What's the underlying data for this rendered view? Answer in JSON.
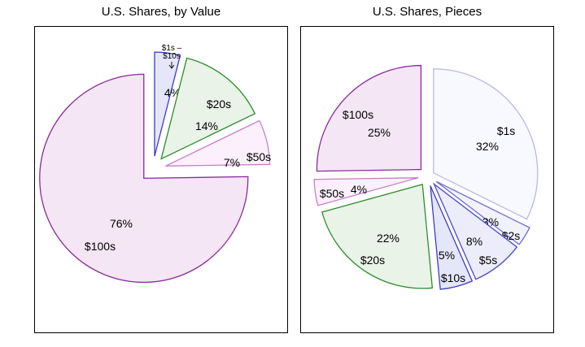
{
  "chart_data": [
    {
      "type": "pie",
      "title": "U.S. Shares, by Value",
      "slices": [
        {
          "label": "$1s – $10s",
          "value": 4,
          "value_label": "4%",
          "fill": "#e6e6fa",
          "stroke": "#3b3bcc"
        },
        {
          "label": "$20s",
          "value": 14,
          "value_label": "14%",
          "fill": "#e9f3e7",
          "stroke": "#2e8b2e"
        },
        {
          "label": "$50s",
          "value": 7,
          "value_label": "7%",
          "fill": "#fbf0fb",
          "stroke": "#c77fc7"
        },
        {
          "label": "$100s",
          "value": 76,
          "value_label": "76%",
          "fill": "#f4e6f4",
          "stroke": "#8b2a9b"
        }
      ]
    },
    {
      "type": "pie",
      "title": "U.S. Shares, Pieces",
      "slices": [
        {
          "label": "$1s",
          "value": 32,
          "value_label": "32%",
          "fill": "#f8f8ff",
          "stroke": "#b7b7e8"
        },
        {
          "label": "$2s",
          "value": 3,
          "value_label": "3%",
          "fill": "#f2f2fd",
          "stroke": "#6b6bd6"
        },
        {
          "label": "$5s",
          "value": 8,
          "value_label": "8%",
          "fill": "#ececfb",
          "stroke": "#4a4ad0"
        },
        {
          "label": "$10s",
          "value": 5,
          "value_label": "5%",
          "fill": "#e6e6fa",
          "stroke": "#3b3bcc"
        },
        {
          "label": "$20s",
          "value": 22,
          "value_label": "22%",
          "fill": "#e9f3e7",
          "stroke": "#2e8b2e"
        },
        {
          "label": "$50s",
          "value": 4,
          "value_label": "4%",
          "fill": "#fbf0fb",
          "stroke": "#c77fc7"
        },
        {
          "label": "$100s",
          "value": 25,
          "value_label": "25%",
          "fill": "#f4e6f4",
          "stroke": "#8b2a9b"
        }
      ]
    }
  ]
}
